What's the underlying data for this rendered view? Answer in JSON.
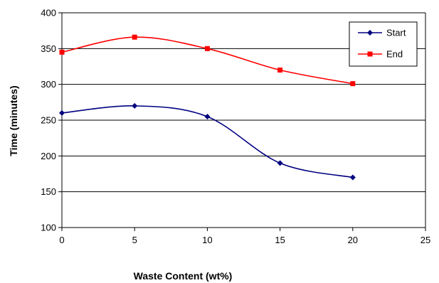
{
  "chart_data": {
    "type": "line",
    "xlabel": "Waste Content (wt%)",
    "ylabel": "Time (minutes)",
    "xlim": [
      0,
      25
    ],
    "ylim": [
      100,
      400
    ],
    "xticks": [
      "0",
      "5",
      "10",
      "15",
      "20",
      "25"
    ],
    "yticks": [
      "100",
      "150",
      "200",
      "250",
      "300",
      "350",
      "400"
    ],
    "grid": "horizontal",
    "legend_position": "top-right",
    "series": [
      {
        "name": "Start",
        "color": "#000080",
        "marker": "diamond",
        "x": [
          0,
          5,
          10,
          15,
          20
        ],
        "y": [
          260,
          270,
          255,
          190,
          170
        ]
      },
      {
        "name": "End",
        "color": "#ff0000",
        "marker": "square",
        "x": [
          0,
          5,
          10,
          15,
          20
        ],
        "y": [
          345,
          366,
          350,
          320,
          301
        ]
      }
    ]
  }
}
